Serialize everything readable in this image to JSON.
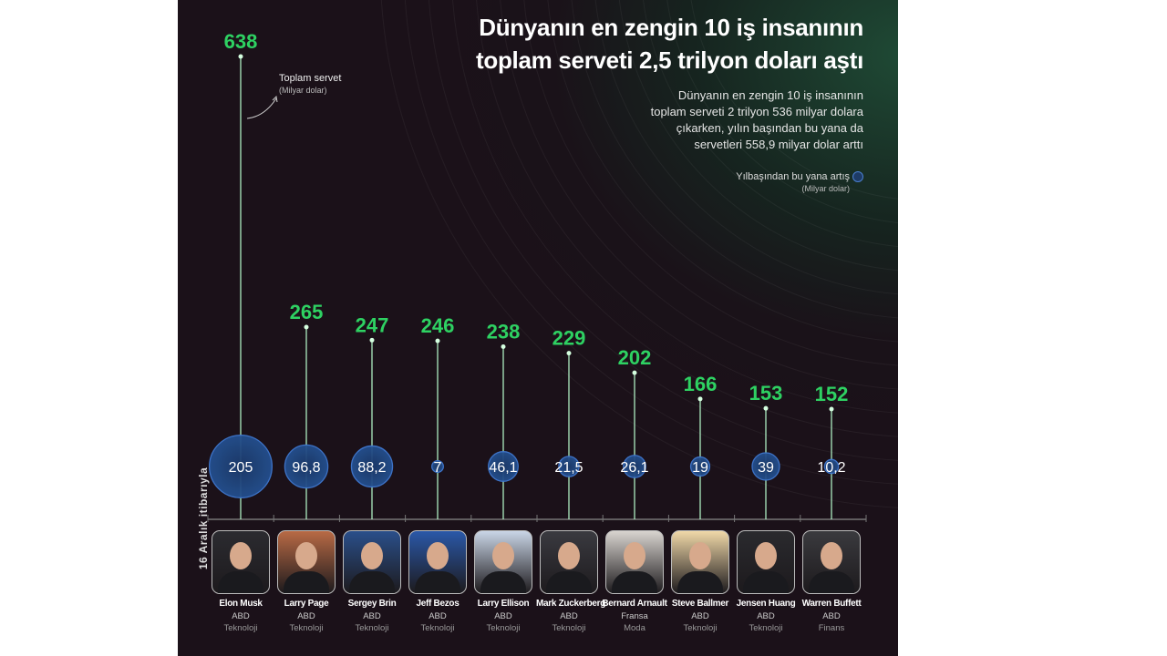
{
  "chart_data": {
    "type": "bar",
    "title": "Dünyanın en zengin 10 iş insanının toplam serveti 2,5 trilyon doları aştı",
    "subtitle": "Dünyanın en zengin 10 iş insanının toplam serveti 2 trilyon 536 milyar dolara çıkarken, yılın başından bu yana da servetleri 558,9 milyar dolar arttı",
    "title_lines": [
      "Dünyanın en zengin 10 iş insanının",
      "toplam serveti 2,5 trilyon doları aştı"
    ],
    "subtitle_lines": [
      "Dünyanın en zengin 10 iş insanının",
      "toplam serveti 2 trilyon 536 milyar dolara",
      "çıkarken, yılın başından bu yana da",
      "servetleri 558,9 milyar dolar arttı"
    ],
    "as_of": "16 Aralık itibarıyla",
    "series": [
      {
        "name": "Toplam servet",
        "unit": "(Milyar dolar)",
        "values": [
          638,
          265,
          247,
          246,
          238,
          229,
          202,
          166,
          153,
          152
        ],
        "labels": [
          "638",
          "265",
          "247",
          "246",
          "238",
          "229",
          "202",
          "166",
          "153",
          "152"
        ],
        "color": "#2ed162"
      },
      {
        "name": "Yılbaşından bu yana artış",
        "unit": "(Milyar dolar)",
        "values": [
          205,
          96.8,
          88.2,
          7,
          46.1,
          21.5,
          26.1,
          19,
          39,
          10.2
        ],
        "labels": [
          "205",
          "96,8",
          "88,2",
          "7",
          "46,1",
          "21,5",
          "26,1",
          "19",
          "39",
          "10,2"
        ],
        "color": "#3a6fc4"
      }
    ],
    "categories": [
      "Elon Musk",
      "Larry Page",
      "Sergey Brin",
      "Jeff Bezos",
      "Larry Ellison",
      "Mark Zuckerberg",
      "Bernard Arnault",
      "Steve Ballmer",
      "Jensen Huang",
      "Warren Buffett"
    ],
    "countries": [
      "ABD",
      "ABD",
      "ABD",
      "ABD",
      "ABD",
      "ABD",
      "Fransa",
      "ABD",
      "ABD",
      "ABD"
    ],
    "sectors": [
      "Teknoloji",
      "Teknoloji",
      "Teknoloji",
      "Teknoloji",
      "Teknoloji",
      "Teknoloji",
      "Moda",
      "Teknoloji",
      "Teknoloji",
      "Finans"
    ],
    "ylim": [
      0,
      638
    ],
    "grid": false
  }
}
